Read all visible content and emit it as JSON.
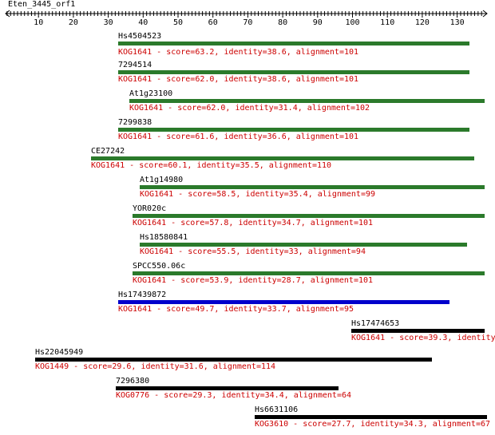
{
  "query": {
    "name": "Eten_3445_orf1",
    "axis_ticks": [
      "10",
      "20",
      "30",
      "40",
      "50",
      "60",
      "70",
      "80",
      "90",
      "100",
      "110",
      "120",
      "130"
    ]
  },
  "colors": {
    "green": "#2b7a2b",
    "blue": "#0000cc",
    "black": "#000000",
    "desc": "#cc0000"
  },
  "hits": [
    {
      "label": "Hs4504523",
      "desc": "KOG1641 - score=63.2, identity=38.6, alignment=101",
      "color": "green"
    },
    {
      "label": "7294514",
      "desc": "KOG1641 - score=62.0, identity=38.6, alignment=101",
      "color": "green"
    },
    {
      "label": "At1g23100",
      "desc": "KOG1641 - score=62.0, identity=31.4, alignment=102",
      "color": "green"
    },
    {
      "label": "7299838",
      "desc": "KOG1641 - score=61.6, identity=36.6, alignment=101",
      "color": "green"
    },
    {
      "label": "CE27242",
      "desc": "KOG1641 - score=60.1, identity=35.5, alignment=110",
      "color": "green"
    },
    {
      "label": "At1g14980",
      "desc": "KOG1641 - score=58.5, identity=35.4, alignment=99",
      "color": "green"
    },
    {
      "label": "YOR020c",
      "desc": "KOG1641 - score=57.8, identity=34.7, alignment=101",
      "color": "green"
    },
    {
      "label": "Hs18580841",
      "desc": "KOG1641 - score=55.5, identity=33, alignment=94",
      "color": "green"
    },
    {
      "label": "SPCC550.06c",
      "desc": "KOG1641 - score=53.9, identity=28.7, alignment=101",
      "color": "green"
    },
    {
      "label": "Hs17439872",
      "desc": "KOG1641 - score=49.7, identity=33.7, alignment=95",
      "color": "blue"
    },
    {
      "label": "Hs17474653",
      "desc": "KOG1641 - score=39.3, identity",
      "color": "black"
    },
    {
      "label": "Hs22045949",
      "desc": "KOG1449 - score=29.6, identity=31.6, alignment=114",
      "color": "black"
    },
    {
      "label": "7296380",
      "desc": "KOG0776 - score=29.3, identity=34.4, alignment=64",
      "color": "black"
    },
    {
      "label": "Hs6631106",
      "desc": "KOG3610 - score=27.7, identity=34.3, alignment=67",
      "color": "black"
    }
  ]
}
